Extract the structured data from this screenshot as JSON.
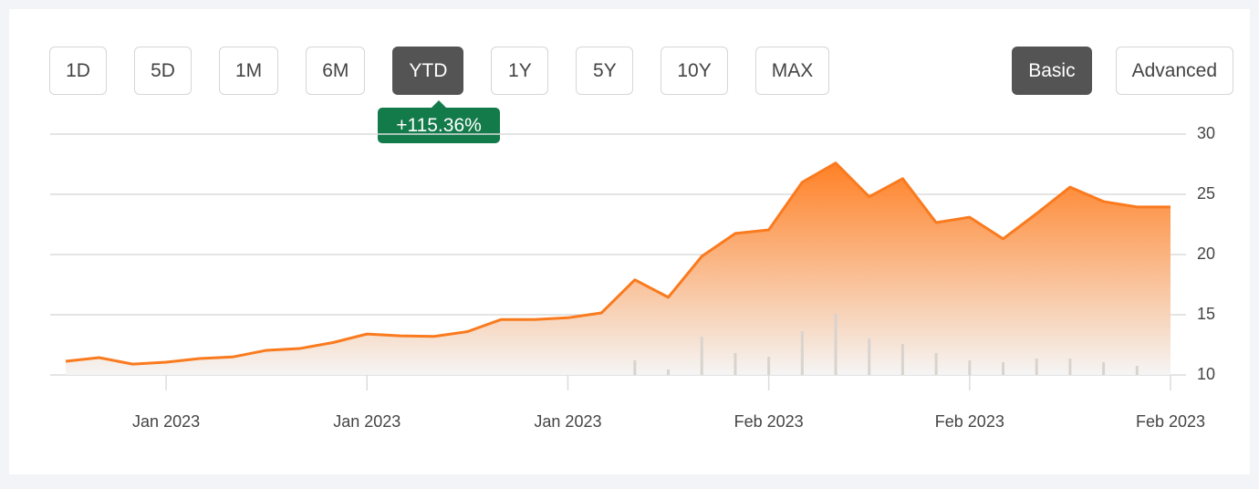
{
  "ui": {
    "ranges": [
      {
        "label": "1D",
        "active": false
      },
      {
        "label": "5D",
        "active": false
      },
      {
        "label": "1M",
        "active": false
      },
      {
        "label": "6M",
        "active": false
      },
      {
        "label": "YTD",
        "active": true
      },
      {
        "label": "1Y",
        "active": false
      },
      {
        "label": "5Y",
        "active": false
      },
      {
        "label": "10Y",
        "active": false
      },
      {
        "label": "MAX",
        "active": false
      }
    ],
    "views": [
      {
        "label": "Basic",
        "active": true
      },
      {
        "label": "Advanced",
        "active": false
      }
    ],
    "badge": "+115.36%"
  },
  "chart_data": {
    "type": "area",
    "categories": [
      null,
      null,
      null,
      "Jan 2023",
      null,
      null,
      null,
      null,
      null,
      "Jan 2023",
      null,
      null,
      null,
      null,
      null,
      "Jan 2023",
      null,
      null,
      null,
      null,
      null,
      "Feb 2023",
      null,
      null,
      null,
      null,
      null,
      "Feb 2023",
      null,
      null,
      null,
      null,
      null,
      "Feb 2023"
    ],
    "values": [
      11.14,
      11.44,
      10.9,
      11.06,
      11.36,
      11.5,
      12.05,
      12.2,
      12.7,
      13.4,
      13.25,
      13.2,
      13.6,
      14.6,
      14.6,
      14.75,
      15.15,
      17.9,
      16.45,
      19.85,
      21.75,
      22.05,
      26,
      27.6,
      24.8,
      26.3,
      22.65,
      23.1,
      21.3,
      23.4,
      25.6,
      24.4,
      23.95,
      23.95
    ],
    "volume": [
      null,
      null,
      null,
      null,
      null,
      null,
      null,
      null,
      null,
      null,
      null,
      null,
      null,
      null,
      null,
      null,
      null,
      16,
      6,
      42,
      24,
      20,
      48,
      67,
      40,
      34,
      24,
      16,
      14,
      18,
      18,
      14,
      10,
      null
    ],
    "color": "#fa7a1e",
    "volume_color": "#d9d3ce",
    "ylim": [
      10,
      30
    ],
    "yticks": [
      10,
      15,
      20,
      25,
      30
    ],
    "grid": true
  }
}
